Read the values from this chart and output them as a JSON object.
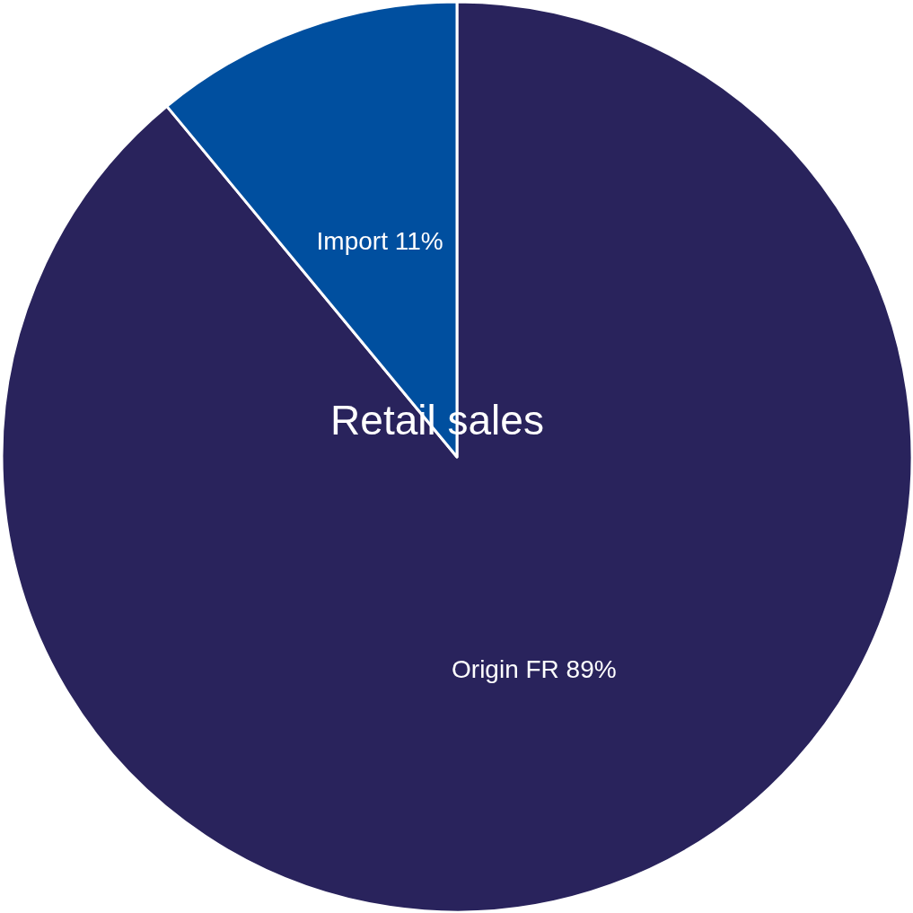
{
  "chart_data": {
    "type": "pie",
    "title": "Retail sales",
    "categories": [
      "Origin FR",
      "Import"
    ],
    "values": [
      89,
      11
    ],
    "colors": [
      "#29235c",
      "#004f9f"
    ],
    "value_labels": [
      "89%",
      "11%"
    ]
  }
}
